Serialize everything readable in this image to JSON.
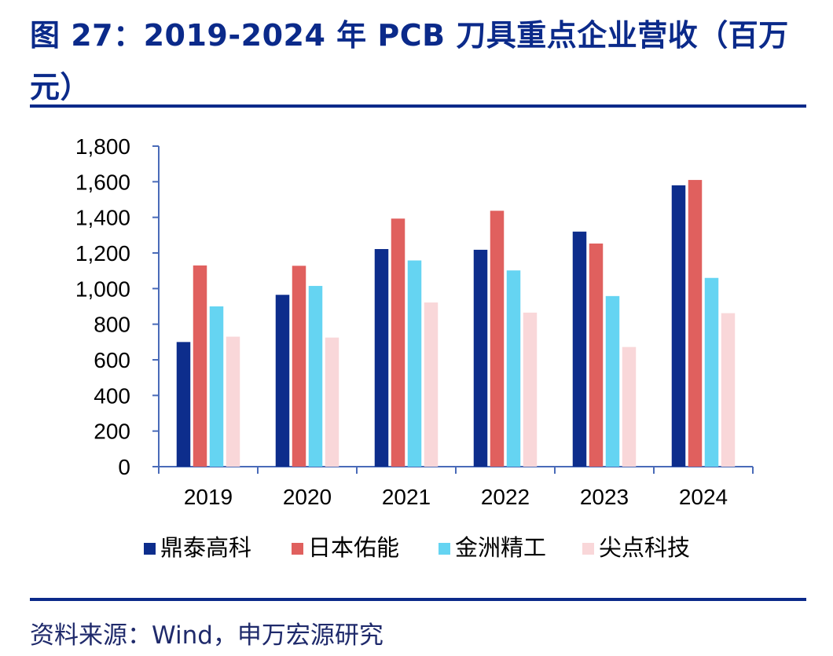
{
  "header": {
    "title": "图 27：2019-2024 年 PCB 刀具重点企业营收（百万元）"
  },
  "footer": {
    "source": "资料来源：Wind，申万宏源研究"
  },
  "colors": {
    "title": "#0b2a8a",
    "axis": "#4a6bb8",
    "rule": "#0b2a8a"
  },
  "chart_data": {
    "type": "bar",
    "title": "图 27：2019-2024 年 PCB 刀具重点企业营收（百万元）",
    "xlabel": "",
    "ylabel": "",
    "ylim": [
      0,
      1800
    ],
    "yticks": [
      0,
      200,
      400,
      600,
      800,
      1000,
      1200,
      1400,
      1600,
      1800
    ],
    "ytick_labels": [
      "0",
      "200",
      "400",
      "600",
      "800",
      "1,000",
      "1,200",
      "1,400",
      "1,600",
      "1,800"
    ],
    "categories": [
      "2019",
      "2020",
      "2021",
      "2022",
      "2023",
      "2024"
    ],
    "grid": false,
    "legend_position": "bottom",
    "series": [
      {
        "name": "鼎泰高科",
        "color": "#0d2d8c",
        "values": [
          700,
          965,
          1222,
          1218,
          1320,
          1580
        ]
      },
      {
        "name": "日本佑能",
        "color": "#e0605e",
        "values": [
          1130,
          1128,
          1393,
          1437,
          1253,
          1610
        ]
      },
      {
        "name": "金洲精工",
        "color": "#65d4f2",
        "values": [
          900,
          1015,
          1158,
          1102,
          958,
          1060
        ]
      },
      {
        "name": "尖点科技",
        "color": "#f9d7d9",
        "values": [
          730,
          725,
          922,
          865,
          672,
          862
        ]
      }
    ]
  }
}
